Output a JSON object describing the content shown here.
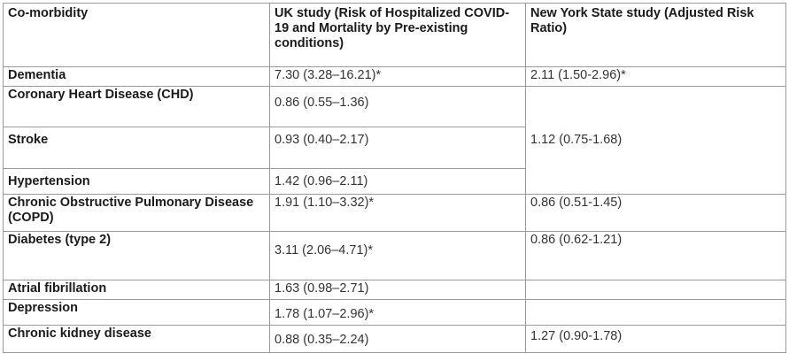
{
  "table": {
    "headers": [
      "Co-morbidity",
      "UK study (Risk of Hospitalized COVID-19 and Mortality by Pre-existing conditions)",
      "New York State study (Adjusted Risk Ratio)"
    ],
    "rows": [
      {
        "condition": "Dementia",
        "uk": "7.30 (3.28–16.21)*",
        "ny": "2.11 (1.50-2.96)*"
      },
      {
        "condition": "Coronary Heart Disease (CHD)",
        "uk": "0.86 (0.55–1.36)"
      },
      {
        "condition": "Stroke",
        "uk": "0.93 (0.40–2.17)"
      },
      {
        "condition": "Hypertension",
        "uk": "1.42 (0.96–2.11)"
      },
      {
        "condition": "Chronic Obstructive Pulmonary Disease (COPD)",
        "uk": "1.91 (1.10–3.32)*",
        "ny": "0.86 (0.51-1.45)"
      },
      {
        "condition": "Diabetes (type 2)",
        "uk": "3.11 (2.06–4.71)*",
        "ny": "0.86 (0.62-1.21)"
      },
      {
        "condition": "Atrial fibrillation",
        "uk": "1.63 (0.98–2.71)"
      },
      {
        "condition": "Depression",
        "uk": "1.78 (1.07–2.96)*"
      },
      {
        "condition": "Chronic kidney disease",
        "uk": "0.88 (0.35–2.24)",
        "ny": "1.27 (0.90-1.78)"
      }
    ],
    "merged_ny": "1.12 (0.75-1.68)"
  }
}
